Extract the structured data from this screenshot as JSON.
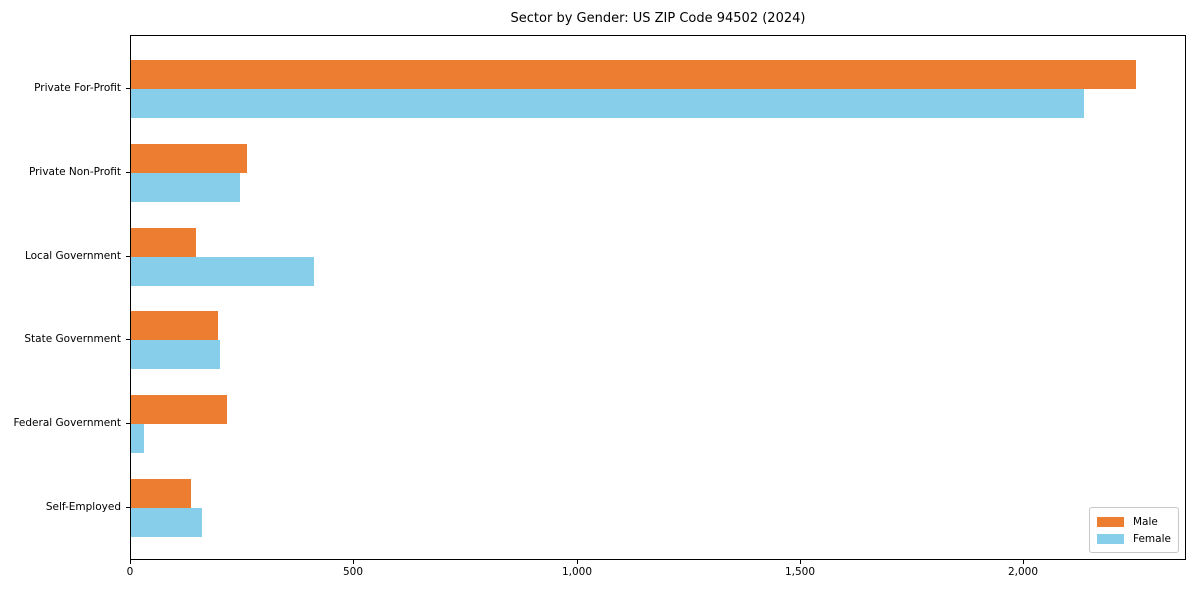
{
  "chart_data": {
    "type": "bar",
    "orientation": "horizontal",
    "title": "Sector by Gender: US ZIP Code 94502 (2024)",
    "xlabel": "",
    "ylabel": "",
    "categories": [
      "Private For-Profit",
      "Private Non-Profit",
      "Local Government",
      "State Government",
      "Federal Government",
      "Self-Employed"
    ],
    "series": [
      {
        "name": "Male",
        "color": "#ED7D31",
        "values": [
          2250,
          260,
          145,
          195,
          215,
          135
        ]
      },
      {
        "name": "Female",
        "color": "#87CEEB",
        "values": [
          2135,
          245,
          410,
          200,
          30,
          160
        ]
      }
    ],
    "xlim": [
      0,
      2365
    ],
    "x_ticks": [
      {
        "value": 0,
        "label": "0"
      },
      {
        "value": 500,
        "label": "500"
      },
      {
        "value": 1000,
        "label": "1,000"
      },
      {
        "value": 1500,
        "label": "1,500"
      },
      {
        "value": 2000,
        "label": "2,000"
      }
    ],
    "grid": false,
    "legend": {
      "position": "lower right"
    }
  },
  "colors": {
    "background": "#ffffff",
    "axis": "#000000",
    "legend_border": "#c8c8c8",
    "male": "#ED7D31",
    "female": "#87CEEB"
  }
}
